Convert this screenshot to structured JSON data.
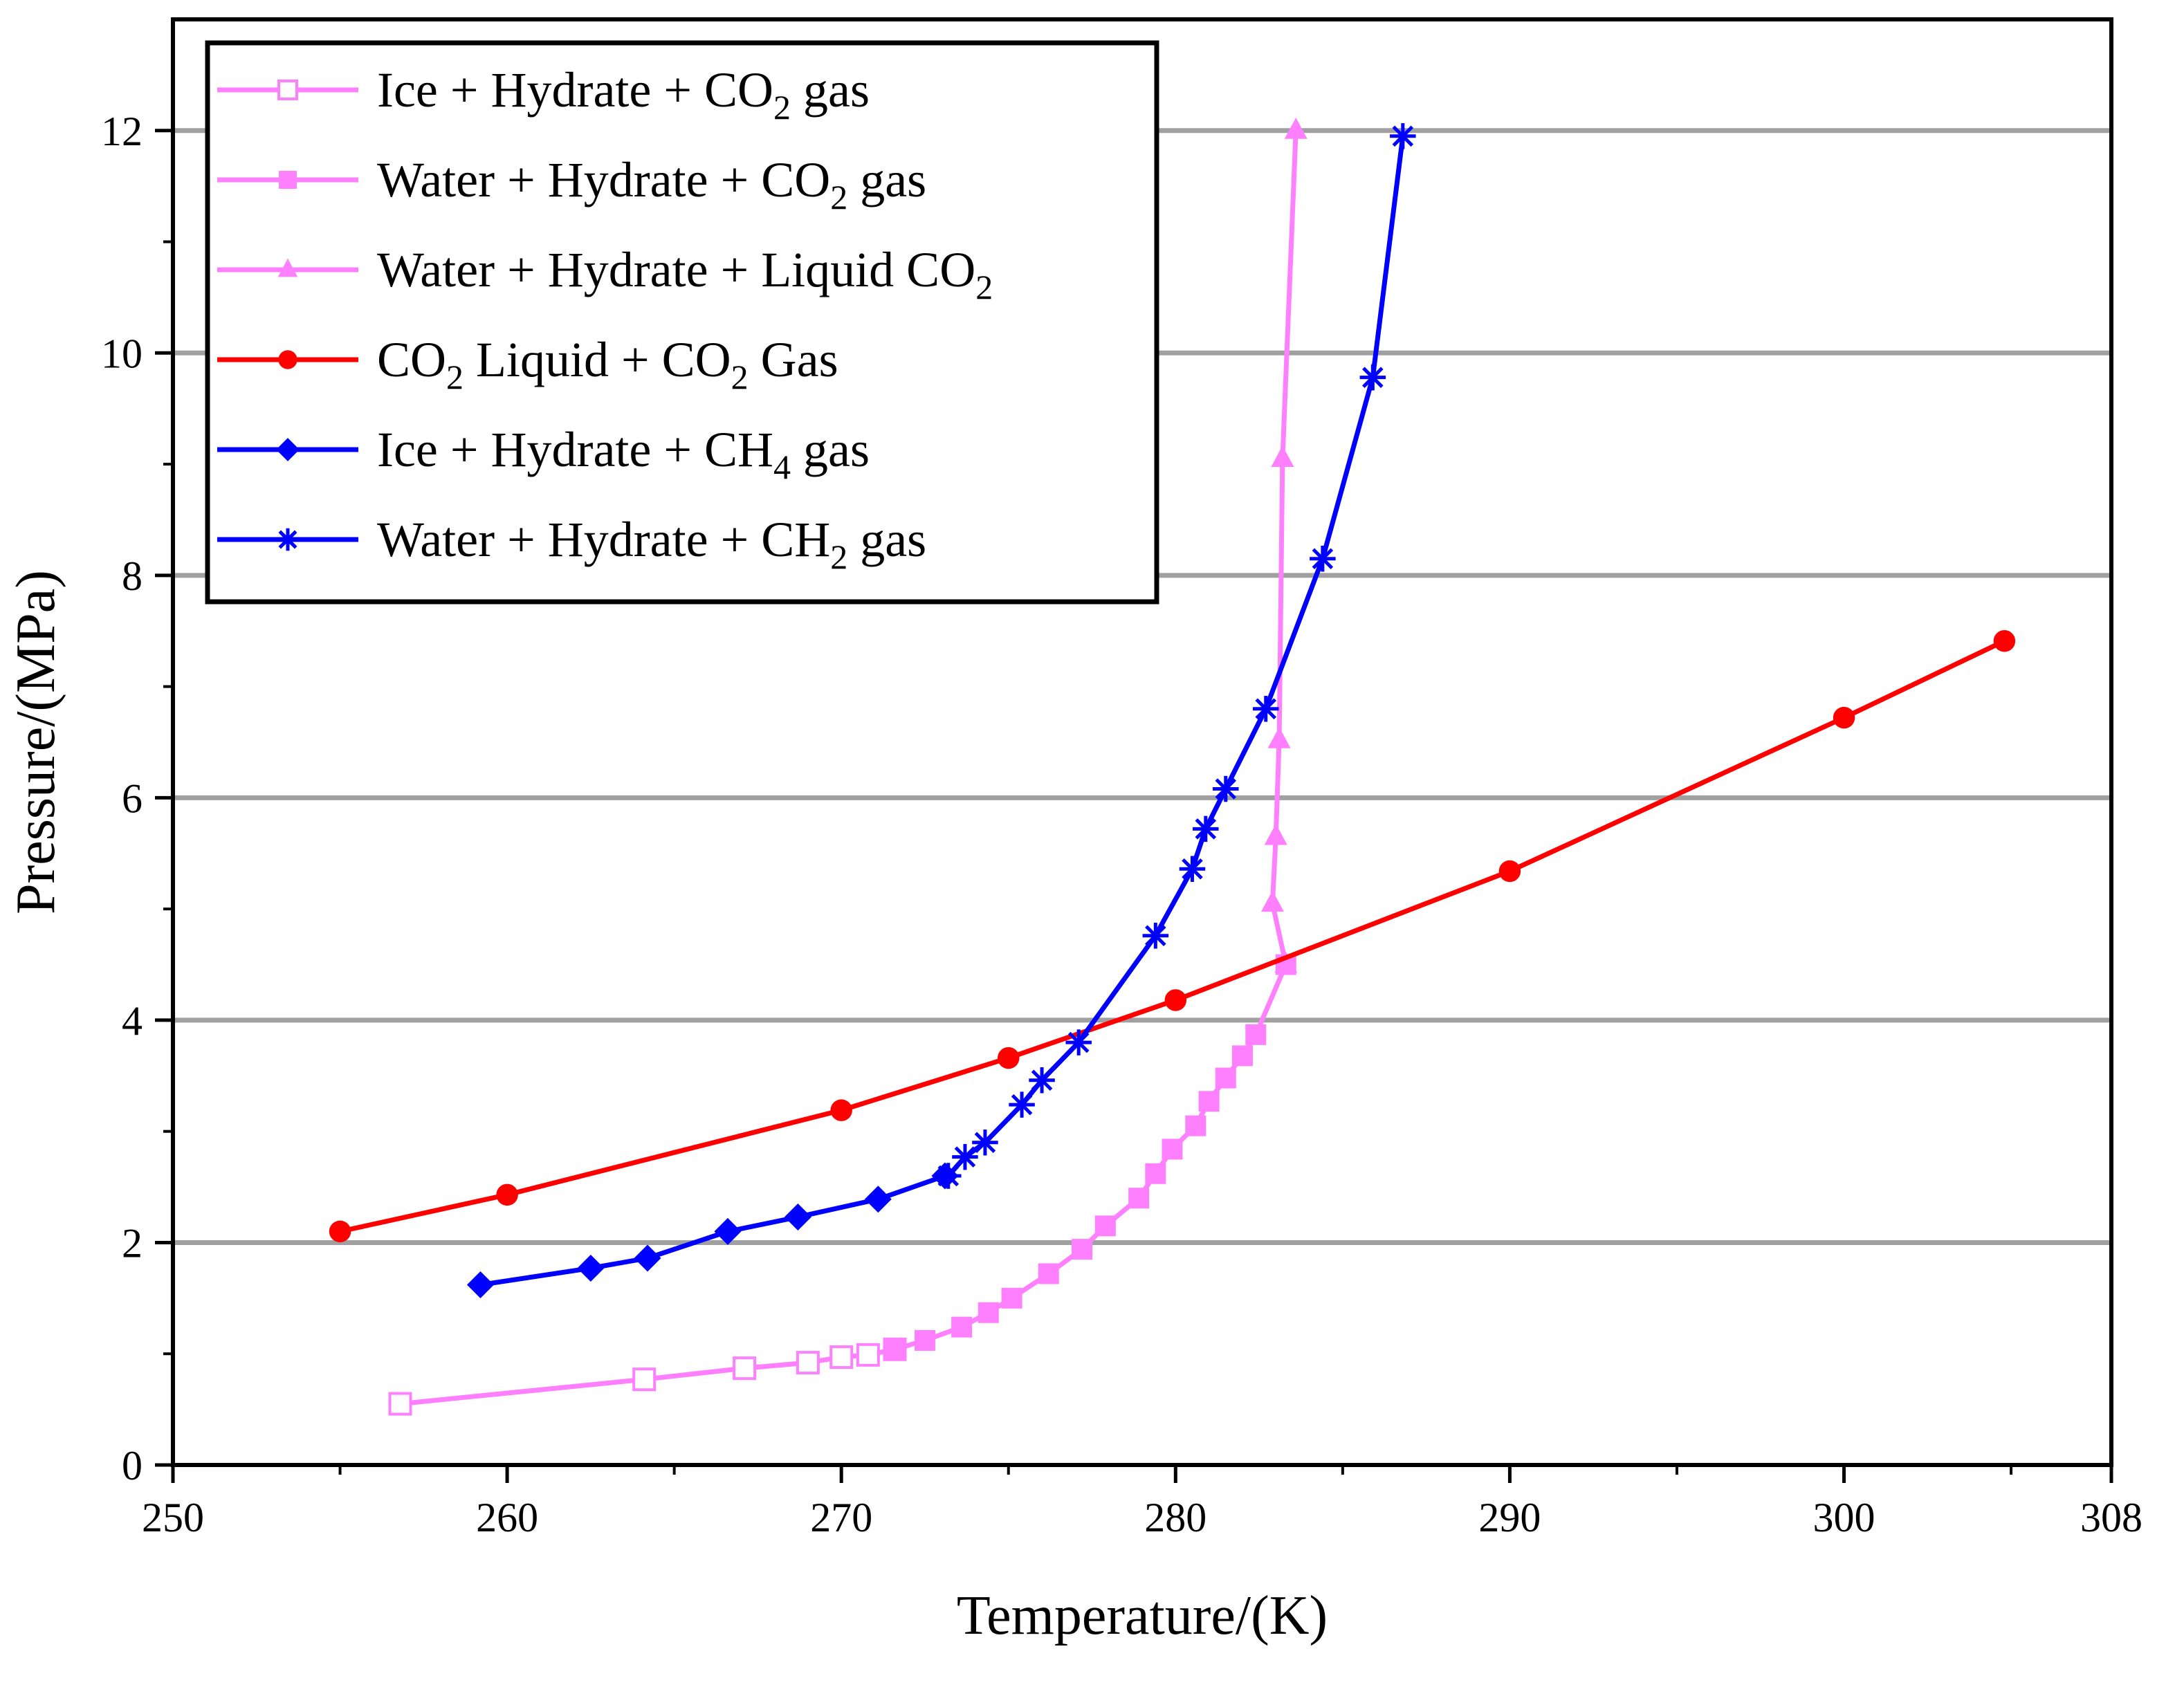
{
  "chart_data": {
    "type": "line",
    "title": "",
    "xlabel": "Temperature/(K)",
    "ylabel": "Pressure/(MPa)",
    "xlim": [
      250,
      308
    ],
    "ylim": [
      0,
      13
    ],
    "xticks": [
      250,
      260,
      270,
      280,
      290,
      300,
      308
    ],
    "xtick_labels": [
      "250",
      "260",
      "270",
      "280",
      "290",
      "300",
      "308"
    ],
    "yticks": [
      0,
      2,
      4,
      6,
      8,
      10,
      12
    ],
    "ytick_labels": [
      "0",
      "2",
      "4",
      "6",
      "8",
      "10",
      "12"
    ],
    "grid": "horizontal",
    "legend_position": "top-left",
    "series": [
      {
        "name": "Ice + Hydrate + CO2 gas",
        "legend": {
          "pre": "Ice + Hydrate + CO",
          "sub": "2",
          "post": " gas"
        },
        "color": "#ff80ff",
        "marker": "square-open",
        "x": [
          256.8,
          264.1,
          267.1,
          269.0,
          270.0,
          270.8,
          271.6
        ],
        "y": [
          0.55,
          0.77,
          0.87,
          0.92,
          0.97,
          0.99,
          1.04
        ]
      },
      {
        "name": "Water + Hydrate + CO2 gas",
        "legend": {
          "pre": "Water + Hydrate + CO",
          "sub": "2",
          "post": " gas"
        },
        "color": "#ff80ff",
        "marker": "square",
        "x": [
          271.6,
          272.5,
          273.6,
          274.4,
          275.1,
          276.2,
          277.2,
          277.9,
          278.9,
          279.4,
          279.9,
          280.6,
          281.0,
          281.5,
          282.0,
          282.4,
          283.3
        ],
        "y": [
          1.04,
          1.12,
          1.24,
          1.37,
          1.5,
          1.72,
          1.94,
          2.15,
          2.4,
          2.62,
          2.84,
          3.05,
          3.27,
          3.48,
          3.68,
          3.87,
          4.5
        ]
      },
      {
        "name": "Water + Hydrate + Liquid CO2",
        "legend": {
          "pre": "Water + Hydrate + Liquid CO",
          "sub": "2",
          "post": ""
        },
        "color": "#ff80ff",
        "marker": "triangle",
        "x": [
          283.3,
          282.9,
          283.0,
          283.1,
          283.2,
          283.6
        ],
        "y": [
          4.5,
          5.05,
          5.65,
          6.52,
          9.05,
          12.0
        ]
      },
      {
        "name": "CO2 Liquid + CO2 Gas",
        "legend": {
          "pre": "CO",
          "sub": "2",
          "post": " Liquid + CO",
          "sub2": "2",
          "post2": " Gas"
        },
        "color": "#ff0000",
        "marker": "circle",
        "x": [
          255,
          260,
          270,
          275,
          280,
          290,
          300,
          304.8
        ],
        "y": [
          2.1,
          2.43,
          3.19,
          3.66,
          4.18,
          5.34,
          6.72,
          7.41
        ]
      },
      {
        "name": "Ice + Hydrate + CH4 gas",
        "legend": {
          "pre": "Ice + Hydrate + CH",
          "sub": "4",
          "post": " gas"
        },
        "color": "#0000ff",
        "marker": "diamond",
        "x": [
          259.2,
          262.5,
          264.2,
          266.6,
          268.7,
          271.1,
          273.1
        ],
        "y": [
          1.62,
          1.77,
          1.86,
          2.1,
          2.23,
          2.39,
          2.6
        ]
      },
      {
        "name": "Water + Hydrate + CH2 gas",
        "legend": {
          "pre": "Water + Hydrate + CH",
          "sub": "2",
          "post": " gas"
        },
        "color": "#0000ff",
        "marker": "asterisk",
        "x": [
          273.2,
          273.7,
          274.3,
          275.4,
          276.0,
          277.1,
          279.4,
          280.5,
          280.9,
          281.5,
          282.7,
          284.4,
          285.9,
          286.8
        ],
        "y": [
          2.6,
          2.77,
          2.9,
          3.24,
          3.46,
          3.8,
          4.76,
          5.36,
          5.72,
          6.08,
          6.8,
          8.15,
          9.78,
          11.95
        ]
      }
    ]
  }
}
